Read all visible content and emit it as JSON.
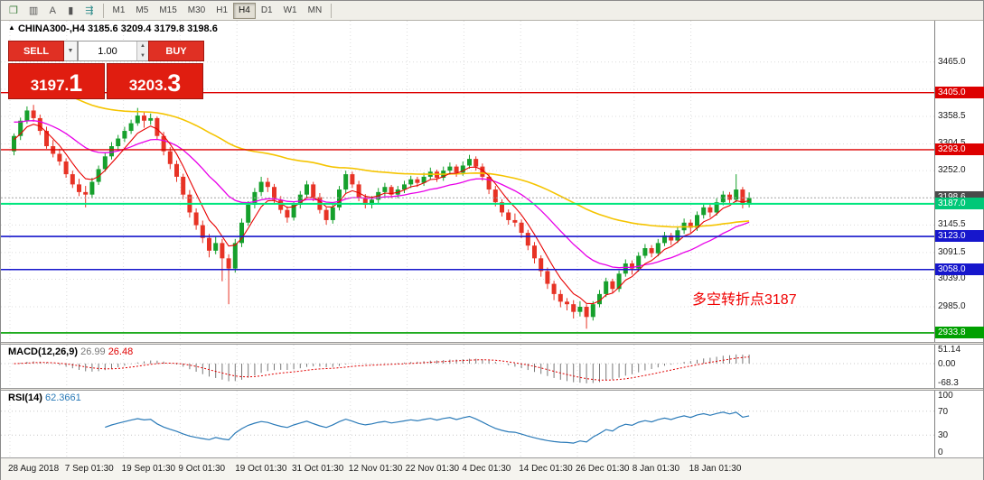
{
  "toolbar": {
    "icons": [
      {
        "name": "new-chart-icon",
        "glyph": "❒",
        "color": "#3a7d3a"
      },
      {
        "name": "bar-chart-icon",
        "glyph": "▥",
        "color": "#555555"
      },
      {
        "name": "text-label-icon",
        "glyph": "A",
        "color": "#555555"
      },
      {
        "name": "candlestick-icon",
        "glyph": "▮",
        "color": "#555555"
      },
      {
        "name": "layout-icon",
        "glyph": "⇶",
        "color": "#2e8b8b"
      }
    ],
    "timeframes": [
      "M1",
      "M5",
      "M15",
      "M30",
      "H1",
      "H4",
      "D1",
      "W1",
      "MN"
    ],
    "active_timeframe": "H4"
  },
  "chart": {
    "header": {
      "marker": "▲",
      "symbol": "CHINA300-,H4",
      "open": "3185.6",
      "high": "3209.4",
      "low": "3179.8",
      "close": "3198.6"
    },
    "trade": {
      "sell_label": "SELL",
      "buy_label": "BUY",
      "dropdown_glyph": "▼",
      "volume": "1.00",
      "spin_up": "▲",
      "spin_down": "▼",
      "bid": "3197.1",
      "bid_main": "3197.",
      "bid_pip": "1",
      "ask": "3203.3",
      "ask_main": "3203.",
      "ask_pip": "3"
    },
    "annotation": {
      "text": "多空转折点3187",
      "color": "#f00000"
    },
    "ylim": [
      2916,
      3546
    ],
    "grid_prices": [
      2985.0,
      3039.0,
      3091.5,
      3145.5,
      3198.8,
      3252.0,
      3304.5,
      3358.5,
      3411.8,
      3465.0
    ],
    "axis_labels": [
      {
        "price": 3465.0,
        "label": "3465.0"
      },
      {
        "price": 3358.5,
        "label": "3358.5"
      },
      {
        "price": 3304.5,
        "label": "3304.5"
      },
      {
        "price": 3252.0,
        "label": "3252.0"
      },
      {
        "price": 3145.5,
        "label": "3145.5"
      },
      {
        "price": 3091.5,
        "label": "3091.5"
      },
      {
        "price": 3039.0,
        "label": "3039.0"
      },
      {
        "price": 2985.0,
        "label": "2985.0"
      }
    ],
    "price_tags": [
      {
        "price": 3405.0,
        "label": "3405.0",
        "bg": "#dd0000"
      },
      {
        "price": 3293.0,
        "label": "3293.0",
        "bg": "#dd0000"
      },
      {
        "price": 3198.6,
        "label": "3198.6",
        "bg": "#4a4a4a"
      },
      {
        "price": 3187.0,
        "label": "3187.0",
        "bg": "#00c878"
      },
      {
        "price": 3123.0,
        "label": "3123.0",
        "bg": "#1616cc"
      },
      {
        "price": 3058.0,
        "label": "3058.0",
        "bg": "#1616cc"
      },
      {
        "price": 2933.8,
        "label": "2933.8",
        "bg": "#00a000"
      }
    ],
    "hlines": [
      {
        "price": 3405.0,
        "color": "#dd0000",
        "w": 1.4
      },
      {
        "price": 3293.0,
        "color": "#dd0000",
        "w": 1.4
      },
      {
        "price": 3187.0,
        "color": "#00e67e",
        "w": 2
      },
      {
        "price": 3123.0,
        "color": "#1616cc",
        "w": 1.6
      },
      {
        "price": 3058.0,
        "color": "#1616cc",
        "w": 1.6
      },
      {
        "price": 2933.8,
        "color": "#00a000",
        "w": 1.6
      },
      {
        "price": 3198.6,
        "color": "#aaaaaa",
        "w": 1,
        "dash": "2 2"
      }
    ],
    "colors": {
      "up": "#16a02c",
      "down": "#e73325"
    },
    "mas": [
      {
        "name": "ma-slow-yellow",
        "color": "#f5c400",
        "alpha": 0.03,
        "seed": 3430,
        "width": 1.6
      },
      {
        "name": "ma-mid-magenta",
        "color": "#e800e8",
        "alpha": 0.09,
        "seed": 3350,
        "width": 1.3
      },
      {
        "name": "ma-fast-red",
        "color": "#e80000",
        "alpha": 0.3,
        "seed": 3310,
        "width": 1.1
      }
    ],
    "candles": [
      [
        3290,
        3325,
        3282,
        3320
      ],
      [
        3320,
        3356,
        3312,
        3350
      ],
      [
        3350,
        3378,
        3344,
        3370
      ],
      [
        3370,
        3381,
        3348,
        3355
      ],
      [
        3355,
        3362,
        3322,
        3330
      ],
      [
        3330,
        3338,
        3295,
        3300
      ],
      [
        3300,
        3312,
        3278,
        3285
      ],
      [
        3285,
        3295,
        3262,
        3270
      ],
      [
        3270,
        3276,
        3238,
        3245
      ],
      [
        3245,
        3252,
        3218,
        3225
      ],
      [
        3225,
        3236,
        3202,
        3210
      ],
      [
        3210,
        3222,
        3180,
        3205
      ],
      [
        3205,
        3238,
        3198,
        3230
      ],
      [
        3230,
        3262,
        3224,
        3255
      ],
      [
        3255,
        3288,
        3250,
        3280
      ],
      [
        3280,
        3308,
        3274,
        3300
      ],
      [
        3300,
        3322,
        3292,
        3315
      ],
      [
        3315,
        3338,
        3308,
        3330
      ],
      [
        3330,
        3352,
        3324,
        3345
      ],
      [
        3345,
        3375,
        3340,
        3360
      ],
      [
        3360,
        3368,
        3336,
        3350
      ],
      [
        3350,
        3364,
        3342,
        3355
      ],
      [
        3355,
        3358,
        3312,
        3320
      ],
      [
        3320,
        3328,
        3282,
        3290
      ],
      [
        3290,
        3298,
        3255,
        3265
      ],
      [
        3265,
        3272,
        3230,
        3240
      ],
      [
        3240,
        3246,
        3196,
        3205
      ],
      [
        3205,
        3214,
        3160,
        3170
      ],
      [
        3170,
        3178,
        3136,
        3145
      ],
      [
        3145,
        3154,
        3110,
        3120
      ],
      [
        3120,
        3128,
        3082,
        3095
      ],
      [
        3095,
        3122,
        3088,
        3110
      ],
      [
        3110,
        3118,
        3035,
        3080
      ],
      [
        3080,
        3088,
        2990,
        3060
      ],
      [
        3060,
        3118,
        3052,
        3110
      ],
      [
        3110,
        3158,
        3102,
        3150
      ],
      [
        3150,
        3192,
        3144,
        3185
      ],
      [
        3185,
        3218,
        3178,
        3210
      ],
      [
        3210,
        3240,
        3202,
        3230
      ],
      [
        3230,
        3238,
        3210,
        3220
      ],
      [
        3220,
        3226,
        3188,
        3195
      ],
      [
        3195,
        3202,
        3168,
        3175
      ],
      [
        3175,
        3182,
        3150,
        3160
      ],
      [
        3160,
        3192,
        3154,
        3185
      ],
      [
        3185,
        3212,
        3178,
        3205
      ],
      [
        3205,
        3232,
        3198,
        3225
      ],
      [
        3225,
        3230,
        3192,
        3200
      ],
      [
        3200,
        3208,
        3168,
        3175
      ],
      [
        3175,
        3180,
        3146,
        3155
      ],
      [
        3155,
        3188,
        3148,
        3180
      ],
      [
        3180,
        3222,
        3174,
        3215
      ],
      [
        3215,
        3252,
        3208,
        3245
      ],
      [
        3245,
        3250,
        3218,
        3225
      ],
      [
        3225,
        3232,
        3192,
        3200
      ],
      [
        3200,
        3206,
        3178,
        3185
      ],
      [
        3185,
        3202,
        3178,
        3195
      ],
      [
        3195,
        3218,
        3188,
        3210
      ],
      [
        3210,
        3228,
        3202,
        3220
      ],
      [
        3220,
        3224,
        3198,
        3205
      ],
      [
        3205,
        3222,
        3198,
        3215
      ],
      [
        3215,
        3232,
        3208,
        3225
      ],
      [
        3225,
        3242,
        3218,
        3235
      ],
      [
        3235,
        3240,
        3220,
        3228
      ],
      [
        3228,
        3248,
        3222,
        3240
      ],
      [
        3240,
        3258,
        3234,
        3250
      ],
      [
        3250,
        3254,
        3230,
        3238
      ],
      [
        3238,
        3260,
        3232,
        3252
      ],
      [
        3252,
        3268,
        3244,
        3260
      ],
      [
        3260,
        3264,
        3240,
        3248
      ],
      [
        3248,
        3270,
        3242,
        3262
      ],
      [
        3262,
        3283,
        3256,
        3275
      ],
      [
        3275,
        3280,
        3252,
        3260
      ],
      [
        3260,
        3266,
        3232,
        3240
      ],
      [
        3240,
        3246,
        3206,
        3215
      ],
      [
        3215,
        3222,
        3182,
        3190
      ],
      [
        3190,
        3196,
        3162,
        3170
      ],
      [
        3170,
        3176,
        3146,
        3155
      ],
      [
        3155,
        3168,
        3142,
        3150
      ],
      [
        3150,
        3156,
        3120,
        3130
      ],
      [
        3130,
        3136,
        3096,
        3105
      ],
      [
        3105,
        3112,
        3070,
        3080
      ],
      [
        3080,
        3086,
        3044,
        3055
      ],
      [
        3055,
        3062,
        3020,
        3030
      ],
      [
        3030,
        3036,
        2998,
        3010
      ],
      [
        3010,
        3018,
        2984,
        2995
      ],
      [
        2995,
        3002,
        2978,
        2990
      ],
      [
        2990,
        2998,
        2962,
        2975
      ],
      [
        2975,
        2996,
        2966,
        2985
      ],
      [
        2985,
        2990,
        2942,
        2965
      ],
      [
        2965,
        2996,
        2958,
        2990
      ],
      [
        2990,
        3018,
        2984,
        3010
      ],
      [
        3010,
        3042,
        3004,
        3035
      ],
      [
        3035,
        3040,
        3012,
        3020
      ],
      [
        3020,
        3056,
        3014,
        3050
      ],
      [
        3050,
        3078,
        3044,
        3070
      ],
      [
        3070,
        3076,
        3048,
        3060
      ],
      [
        3060,
        3092,
        3054,
        3085
      ],
      [
        3085,
        3108,
        3080,
        3100
      ],
      [
        3100,
        3106,
        3082,
        3090
      ],
      [
        3090,
        3118,
        3084,
        3110
      ],
      [
        3110,
        3132,
        3104,
        3125
      ],
      [
        3125,
        3130,
        3106,
        3115
      ],
      [
        3115,
        3142,
        3110,
        3135
      ],
      [
        3135,
        3158,
        3128,
        3150
      ],
      [
        3150,
        3156,
        3130,
        3140
      ],
      [
        3140,
        3172,
        3134,
        3165
      ],
      [
        3165,
        3188,
        3158,
        3180
      ],
      [
        3180,
        3186,
        3160,
        3170
      ],
      [
        3170,
        3198,
        3164,
        3190
      ],
      [
        3190,
        3212,
        3184,
        3205
      ],
      [
        3205,
        3210,
        3186,
        3195
      ],
      [
        3195,
        3245,
        3190,
        3215
      ],
      [
        3215,
        3220,
        3178,
        3185
      ],
      [
        3185.6,
        3209.4,
        3179.8,
        3198.6
      ]
    ]
  },
  "macd": {
    "label": "MACD(12,26,9)",
    "value_main": "26.99",
    "value_signal": "26.48",
    "fast": 12,
    "slow": 26,
    "signal_period": 9,
    "ylim": [
      -80,
      62
    ],
    "axis": [
      {
        "value": 51.14,
        "label": "51.14"
      },
      {
        "value": 0,
        "label": "0.00"
      },
      {
        "value": -68.3,
        "label": "-68.3"
      }
    ],
    "colors": {
      "histogram": "#787878",
      "signal": "#e00000"
    }
  },
  "rsi": {
    "label": "RSI(14)",
    "value": "62.3661",
    "period": 14,
    "levels": [
      70,
      30
    ],
    "axis": [
      {
        "value": 100,
        "label": "100"
      },
      {
        "value": 70,
        "label": "70"
      },
      {
        "value": 30,
        "label": "30"
      },
      {
        "value": 0,
        "label": "0"
      }
    ],
    "colors": {
      "line": "#2a7ab8"
    }
  },
  "timebar": {
    "labels": [
      "28 Aug 2018",
      "7 Sep 01:30",
      "19 Sep 01:30",
      "9 Oct 01:30",
      "19 Oct 01:30",
      "31 Oct 01:30",
      "12 Nov 01:30",
      "22 Nov 01:30",
      "4 Dec 01:30",
      "14 Dec 01:30",
      "26 Dec 01:30",
      "8 Jan 01:30",
      "18 Jan 01:30"
    ]
  }
}
